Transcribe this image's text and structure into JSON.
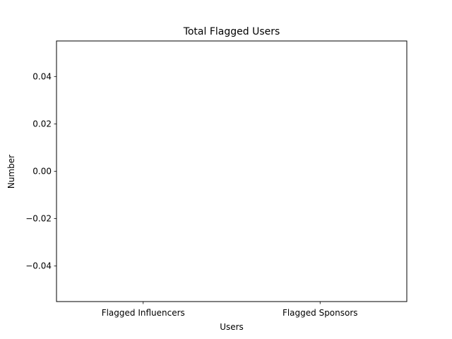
{
  "chart_data": {
    "type": "bar",
    "title": "Total Flagged Users",
    "xlabel": "Users",
    "ylabel": "Number",
    "categories": [
      "Flagged Influencers",
      "Flagged Sponsors"
    ],
    "values": [
      0,
      0
    ],
    "ylim": [
      -0.055,
      0.055
    ],
    "yticks": [
      -0.04,
      -0.02,
      0.0,
      0.02,
      0.04
    ],
    "ytick_labels": [
      "−0.04",
      "−0.02",
      "0.00",
      "0.02",
      "0.04"
    ],
    "grid": false,
    "legend": "none",
    "bar_color": "#1f77b4"
  }
}
